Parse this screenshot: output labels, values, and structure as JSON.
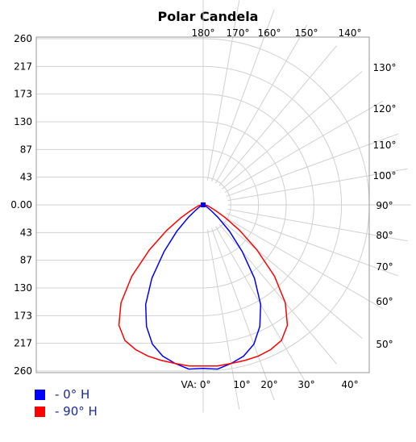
{
  "chart_data": {
    "type": "polar",
    "title": "Polar Candela",
    "radial_max": 260,
    "radial_tick_labels": [
      "260",
      "217",
      "173",
      "130",
      "87",
      "43",
      "0.00"
    ],
    "angle_labels_left_half": [
      "VA: 0°",
      "10°",
      "20°",
      "30°",
      "40°",
      "50°",
      "60°",
      "70°",
      "80°",
      "90°",
      "100°",
      "110°",
      "120°",
      "130°",
      "140°",
      "150°",
      "160°",
      "170°",
      "180°"
    ],
    "grid": true,
    "series": [
      {
        "name": "- 0° H",
        "color": "#0000ff",
        "points": [
          {
            "angle": 0,
            "value": 256
          },
          {
            "angle": 5,
            "value": 258
          },
          {
            "angle": 10,
            "value": 252
          },
          {
            "angle": 15,
            "value": 245
          },
          {
            "angle": 20,
            "value": 232
          },
          {
            "angle": 25,
            "value": 210
          },
          {
            "angle": 30,
            "value": 180
          },
          {
            "angle": 35,
            "value": 140
          },
          {
            "angle": 40,
            "value": 95
          },
          {
            "angle": 45,
            "value": 58
          },
          {
            "angle": 50,
            "value": 30
          },
          {
            "angle": 55,
            "value": 14
          },
          {
            "angle": 60,
            "value": 7
          },
          {
            "angle": 70,
            "value": 4
          },
          {
            "angle": 80,
            "value": 3
          },
          {
            "angle": 90,
            "value": 2
          }
        ]
      },
      {
        "name": "- 90° H",
        "color": "#ff0000",
        "points": [
          {
            "angle": 0,
            "value": 252
          },
          {
            "angle": 5,
            "value": 253
          },
          {
            "angle": 10,
            "value": 252
          },
          {
            "angle": 15,
            "value": 252
          },
          {
            "angle": 20,
            "value": 252
          },
          {
            "angle": 25,
            "value": 250
          },
          {
            "angle": 30,
            "value": 245
          },
          {
            "angle": 35,
            "value": 230
          },
          {
            "angle": 40,
            "value": 200
          },
          {
            "angle": 45,
            "value": 158
          },
          {
            "angle": 50,
            "value": 110
          },
          {
            "angle": 55,
            "value": 70
          },
          {
            "angle": 60,
            "value": 40
          },
          {
            "angle": 65,
            "value": 22
          },
          {
            "angle": 70,
            "value": 13
          },
          {
            "angle": 80,
            "value": 7
          },
          {
            "angle": 90,
            "value": 3
          }
        ]
      }
    ],
    "legend_position": "bottom-left"
  }
}
